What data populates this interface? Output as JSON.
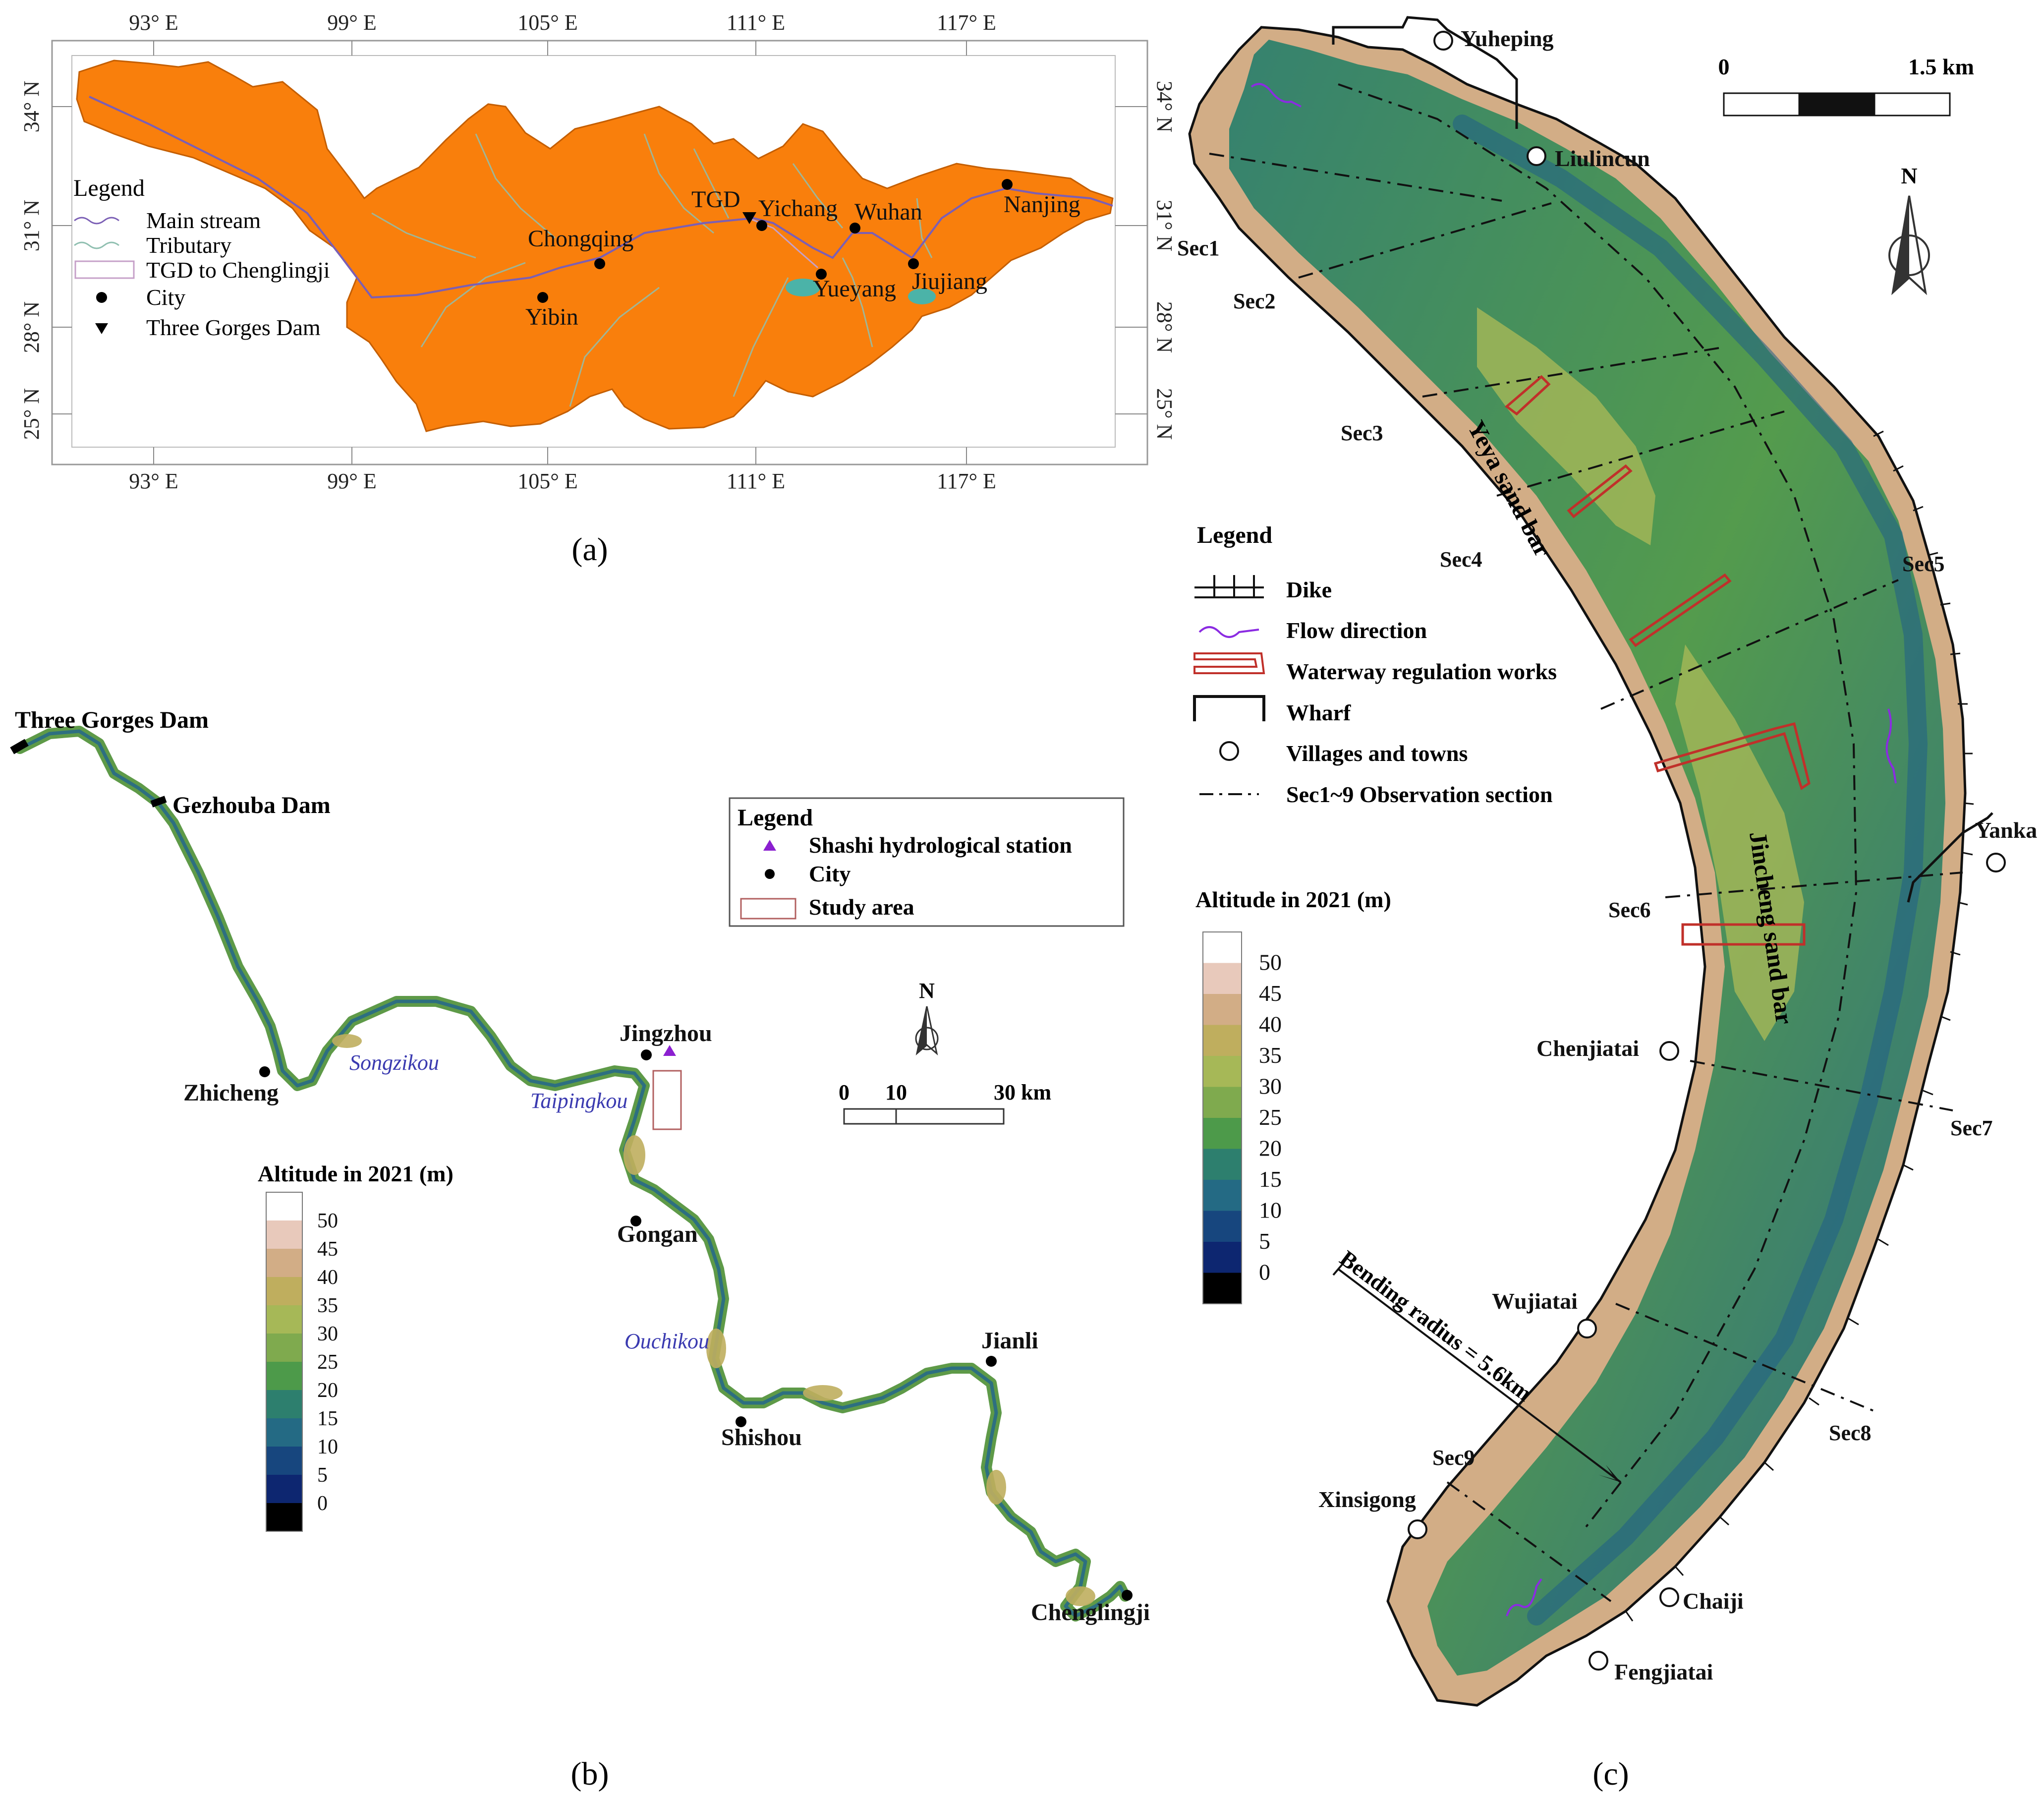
{
  "panel_a": {
    "caption": "(a)",
    "lon_labels": [
      "93° E",
      "99° E",
      "105° E",
      "111° E",
      "117° E"
    ],
    "lat_labels": [
      "34° N",
      "31° N",
      "28° N",
      "25° N"
    ],
    "legend": {
      "title": "Legend",
      "items": [
        "Main stream",
        "Tributary",
        "TGD to Chenglingji",
        "City",
        "Three Gorges Dam"
      ]
    },
    "cities": [
      "Yibin",
      "Chongqing",
      "Yichang",
      "Wuhan",
      "Yueyang",
      "Jiujiang",
      "Nanjing"
    ],
    "dam_label": "TGD",
    "colors": {
      "basin": "#f97f0c",
      "main_stream": "#7b5fb5",
      "tributary": "#8fbfb0",
      "lake": "#4bb3a8"
    }
  },
  "panel_b": {
    "caption": "(b)",
    "cities": [
      "Zhicheng",
      "Jingzhou",
      "Gongan",
      "Shishou",
      "Jianli",
      "Chenglingji"
    ],
    "dams": [
      "Three Gorges Dam",
      "Gezhouba Dam"
    ],
    "river_mouths": [
      "Songzikou",
      "Taipingkou",
      "Ouchikou"
    ],
    "legend": {
      "title": "Legend",
      "items": [
        "Shashi hydrological station",
        "City",
        "Study area"
      ]
    },
    "north_label": "N",
    "scale": [
      "0",
      "10",
      "30 km"
    ],
    "altitude_title": "Altitude in 2021 (m)"
  },
  "panel_c": {
    "caption": "(c)",
    "villages": [
      "Yuheping",
      "Liulincun",
      "Yanka",
      "Chenjiatai",
      "Wujiatai",
      "Xinsigong",
      "Chaiji",
      "Fengjiatai"
    ],
    "sections": [
      "Sec1",
      "Sec2",
      "Sec3",
      "Sec4",
      "Sec5",
      "Sec6",
      "Sec7",
      "Sec8",
      "Sec9"
    ],
    "sand_bars": [
      "Yeya sand bar",
      "Jincheng sand bar"
    ],
    "bending_radius": "Bending radius = 5.6km",
    "scale": [
      "0",
      "1.5 km"
    ],
    "north_label": "N",
    "legend": {
      "title": "Legend",
      "items": [
        "Dike",
        "Flow direction",
        "Waterway regulation works",
        "Wharf",
        "Villages and towns",
        "Sec1~9  Observation section"
      ]
    },
    "altitude_title": "Altitude in 2021 (m)"
  },
  "altitude_scale": {
    "labels": [
      "50",
      "45",
      "40",
      "35",
      "30",
      "25",
      "20",
      "15",
      "10",
      "5",
      "0"
    ],
    "colors": [
      "#ffffff",
      "#e8c9bb",
      "#d2ad86",
      "#bfae5e",
      "#a6b857",
      "#7faa4e",
      "#4d9a4a",
      "#2d7f6e",
      "#246a84",
      "#17467e",
      "#0d2670",
      "#000000"
    ]
  }
}
